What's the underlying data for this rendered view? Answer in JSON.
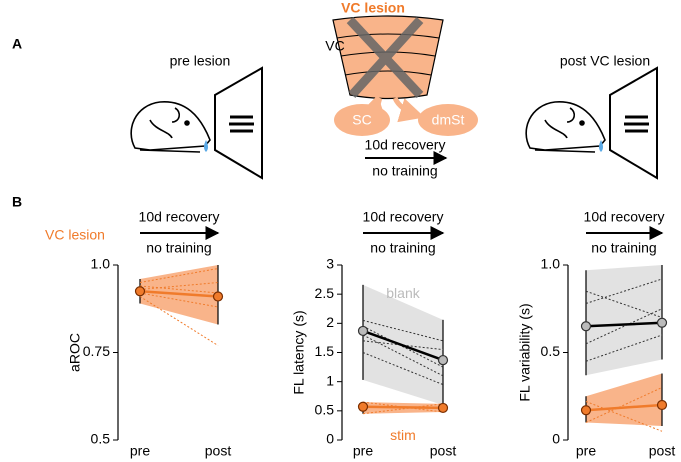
{
  "panel_a": {
    "label": "A",
    "left_title": "pre lesion",
    "lesion_title": "VC lesion",
    "area": "VC",
    "target_1": "SC",
    "target_2": "dmSt",
    "arrow_top": "10d recovery",
    "arrow_bottom": "no training",
    "right_title": "post VC lesion"
  },
  "panel_b": {
    "label": "B",
    "condition": "VC lesion",
    "arrows": [
      {
        "top": "10d recovery",
        "bottom": "no training"
      },
      {
        "top": "10d recovery",
        "bottom": "no training"
      },
      {
        "top": "10d recovery",
        "bottom": "no training"
      }
    ]
  },
  "chart_data": [
    {
      "type": "line",
      "ylabel": "aROC",
      "categories": [
        "pre",
        "post"
      ],
      "ylim": [
        0.5,
        1
      ],
      "yticks": [
        0.5,
        0.75,
        {
          "value": 1,
          "label": "1.0"
        }
      ],
      "bands": [
        {
          "color": "#f9b48a",
          "lower": [
            0.89,
            0.83
          ],
          "upper": [
            0.96,
            1.0
          ]
        }
      ],
      "series": [
        {
          "color": "#f07b2b",
          "style": "dotted",
          "values": [
            0.95,
            0.99
          ]
        },
        {
          "color": "#f07b2b",
          "style": "dotted",
          "values": [
            0.93,
            0.95
          ]
        },
        {
          "color": "#f07b2b",
          "style": "dotted",
          "values": [
            0.92,
            0.88
          ]
        },
        {
          "color": "#f07b2b",
          "style": "dotted",
          "values": [
            0.91,
            0.77
          ]
        },
        {
          "color": "#f07b2b",
          "style": "dotted",
          "values": [
            0.94,
            0.92
          ]
        },
        {
          "color": "#f07b2b",
          "style": "solid",
          "marker": true,
          "values": [
            0.925,
            0.91
          ]
        }
      ]
    },
    {
      "type": "line",
      "ylabel": "FL latency (s)",
      "categories": [
        "pre",
        "post"
      ],
      "ylim": [
        0,
        3
      ],
      "yticks": [
        0,
        0.5,
        1,
        1.5,
        2,
        2.5,
        3
      ],
      "bands": [
        {
          "color": "#e2e2e2",
          "lower": [
            1.03,
            0.6
          ],
          "upper": [
            2.66,
            2.06
          ]
        },
        {
          "color": "#f9b48a",
          "lower": [
            0.45,
            0.48
          ],
          "upper": [
            0.65,
            0.62
          ]
        }
      ],
      "series": [
        {
          "color": "#333333",
          "style": "dotted",
          "values": [
            2.05,
            1.7
          ]
        },
        {
          "color": "#333333",
          "style": "dotted",
          "values": [
            1.95,
            1.25
          ]
        },
        {
          "color": "#333333",
          "style": "dotted",
          "values": [
            1.7,
            1.55
          ]
        },
        {
          "color": "#333333",
          "style": "dotted",
          "values": [
            1.5,
            0.95
          ]
        },
        {
          "color": "#333333",
          "style": "dotted",
          "values": [
            1.8,
            1.1
          ]
        },
        {
          "color": "#000000",
          "style": "solid",
          "marker": true,
          "marker_color": "#bbbbbb",
          "values": [
            1.87,
            1.37
          ]
        },
        {
          "color": "#f07b2b",
          "style": "dotted",
          "values": [
            0.65,
            0.48
          ]
        },
        {
          "color": "#f07b2b",
          "style": "dotted",
          "values": [
            0.45,
            0.62
          ]
        },
        {
          "color": "#f07b2b",
          "style": "solid",
          "marker": true,
          "values": [
            0.57,
            0.55
          ]
        }
      ],
      "annotations": [
        {
          "text": "blank",
          "x": 1,
          "y": 2.5,
          "color": "#bbbbbb"
        },
        {
          "text": "stim",
          "x": 1,
          "y": 0.06,
          "color": "#f07b2b"
        }
      ]
    },
    {
      "type": "line",
      "ylabel": "FL variability (s)",
      "categories": [
        "pre",
        "post"
      ],
      "ylim": [
        0,
        1
      ],
      "yticks": [
        0,
        0.5,
        {
          "value": 1,
          "label": "1.0"
        }
      ],
      "bands": [
        {
          "color": "#e2e2e2",
          "lower": [
            0.37,
            0.46
          ],
          "upper": [
            0.97,
            1.0
          ]
        },
        {
          "color": "#f9b48a",
          "lower": [
            0.1,
            0.08
          ],
          "upper": [
            0.25,
            0.38
          ]
        }
      ],
      "series": [
        {
          "color": "#333333",
          "style": "dotted",
          "values": [
            0.85,
            0.7
          ]
        },
        {
          "color": "#333333",
          "style": "dotted",
          "values": [
            0.78,
            0.92
          ]
        },
        {
          "color": "#333333",
          "style": "dotted",
          "values": [
            0.55,
            0.75
          ]
        },
        {
          "color": "#333333",
          "style": "dotted",
          "values": [
            0.45,
            0.6
          ]
        },
        {
          "color": "#000000",
          "style": "solid",
          "marker": true,
          "marker_color": "#bbbbbb",
          "values": [
            0.65,
            0.67
          ]
        },
        {
          "color": "#f07b2b",
          "style": "dotted",
          "values": [
            0.1,
            0.3
          ]
        },
        {
          "color": "#f07b2b",
          "style": "dotted",
          "values": [
            0.22,
            0.05
          ]
        },
        {
          "color": "#f07b2b",
          "style": "solid",
          "marker": true,
          "values": [
            0.17,
            0.2
          ]
        }
      ]
    }
  ]
}
